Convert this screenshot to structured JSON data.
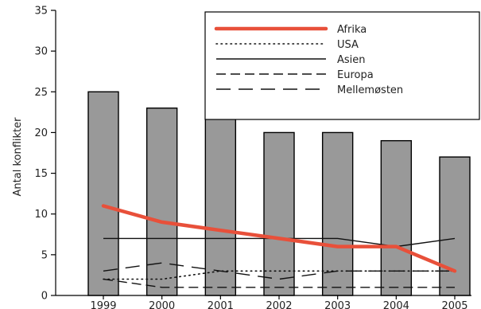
{
  "chart_data": {
    "type": "bar",
    "ylabel": "Antal konflikter",
    "xlabel": "",
    "ylim": [
      0,
      35
    ],
    "yticks": [
      0,
      5,
      10,
      15,
      20,
      25,
      30,
      35
    ],
    "categories": [
      "1999",
      "2000",
      "2001",
      "2002",
      "2003",
      "2004",
      "2005"
    ],
    "bars": {
      "values": [
        25,
        23,
        22,
        20,
        20,
        19,
        17
      ],
      "color": "#999999"
    },
    "series": [
      {
        "name": "Afrika",
        "values": [
          11,
          9,
          8,
          7,
          6,
          6,
          3
        ],
        "color": "#e8503a",
        "style": "thick-solid"
      },
      {
        "name": "USA",
        "values": [
          2,
          2,
          3,
          3,
          3,
          3,
          3
        ],
        "color": "#111111",
        "style": "dotted"
      },
      {
        "name": "Asien",
        "values": [
          7,
          7,
          7,
          7,
          7,
          6,
          7
        ],
        "color": "#111111",
        "style": "solid"
      },
      {
        "name": "Europa",
        "values": [
          2,
          1,
          1,
          1,
          1,
          1,
          1
        ],
        "color": "#111111",
        "style": "dashed"
      },
      {
        "name": "Mellemøsten",
        "values": [
          3,
          4,
          3,
          2,
          3,
          3,
          3
        ],
        "color": "#111111",
        "style": "long-dashed"
      }
    ],
    "legend_position": "top-right",
    "grid": false
  }
}
